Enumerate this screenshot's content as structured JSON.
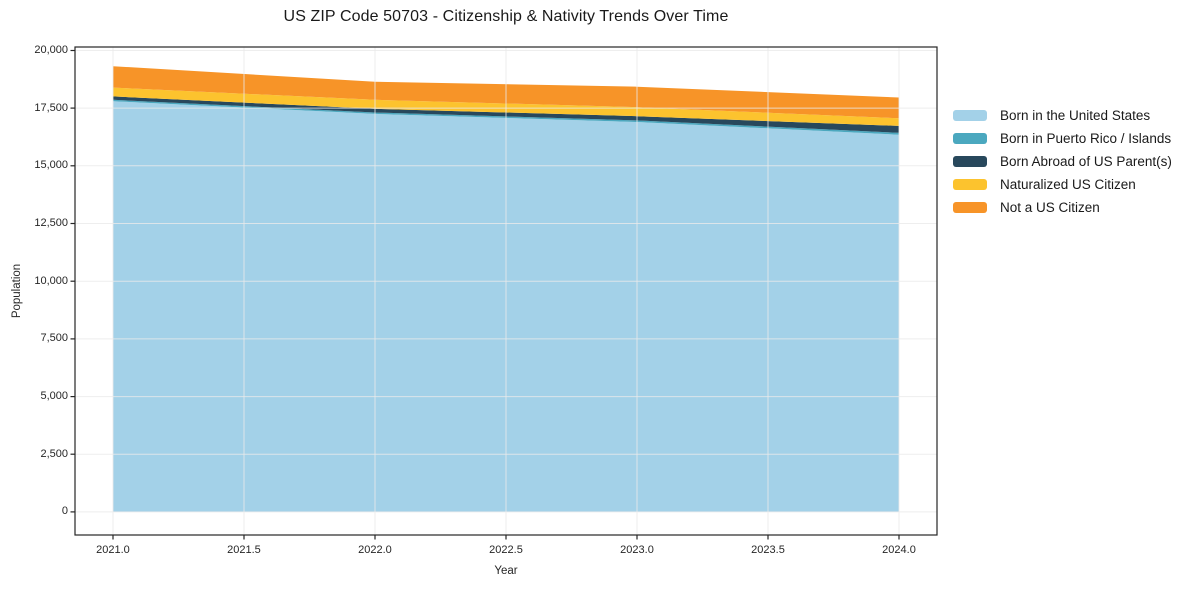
{
  "chart_data": {
    "type": "area",
    "stacked": true,
    "title": "US ZIP Code 50703 - Citizenship & Nativity Trends Over Time",
    "xlabel": "Year",
    "ylabel": "Population",
    "x": [
      2021,
      2022,
      2023,
      2024
    ],
    "series": [
      {
        "name": "Born in the United States",
        "color": "#A3D1E8",
        "values": [
          17800,
          17250,
          16900,
          16350
        ]
      },
      {
        "name": "Born in Puerto Rico / Islands",
        "color": "#4BA8BF",
        "values": [
          60,
          60,
          70,
          80
        ]
      },
      {
        "name": "Born Abroad of US Parent(s)",
        "color": "#28485C",
        "values": [
          150,
          160,
          180,
          300
        ]
      },
      {
        "name": "Naturalized US Citizen",
        "color": "#FCC32E",
        "values": [
          380,
          390,
          390,
          330
        ]
      },
      {
        "name": "Not a US Citizen",
        "color": "#F79428",
        "values": [
          930,
          780,
          890,
          900
        ]
      }
    ],
    "xticks": [
      2021.0,
      2021.5,
      2022.0,
      2022.5,
      2023.0,
      2023.5,
      2024.0
    ],
    "xtick_labels": [
      "2021.0",
      "2021.5",
      "2022.0",
      "2022.5",
      "2023.0",
      "2023.5",
      "2024.0"
    ],
    "yticks": [
      0,
      2500,
      5000,
      7500,
      10000,
      12500,
      15000,
      17500,
      20000
    ],
    "ytick_labels": [
      "0",
      "2,500",
      "5,000",
      "7,500",
      "10,000",
      "12,500",
      "15,000",
      "17,500",
      "20,000"
    ],
    "xlim": [
      2020.855,
      2024.145
    ],
    "ylim": [
      -1000,
      20150
    ],
    "grid": true,
    "legend_position": "outside-right-top"
  },
  "colors": {
    "background": "#FFFFFF",
    "grid": "#EAEAEA",
    "spine": "#262626",
    "title_text": "#1A1A1A",
    "tick_text": "#262626"
  }
}
